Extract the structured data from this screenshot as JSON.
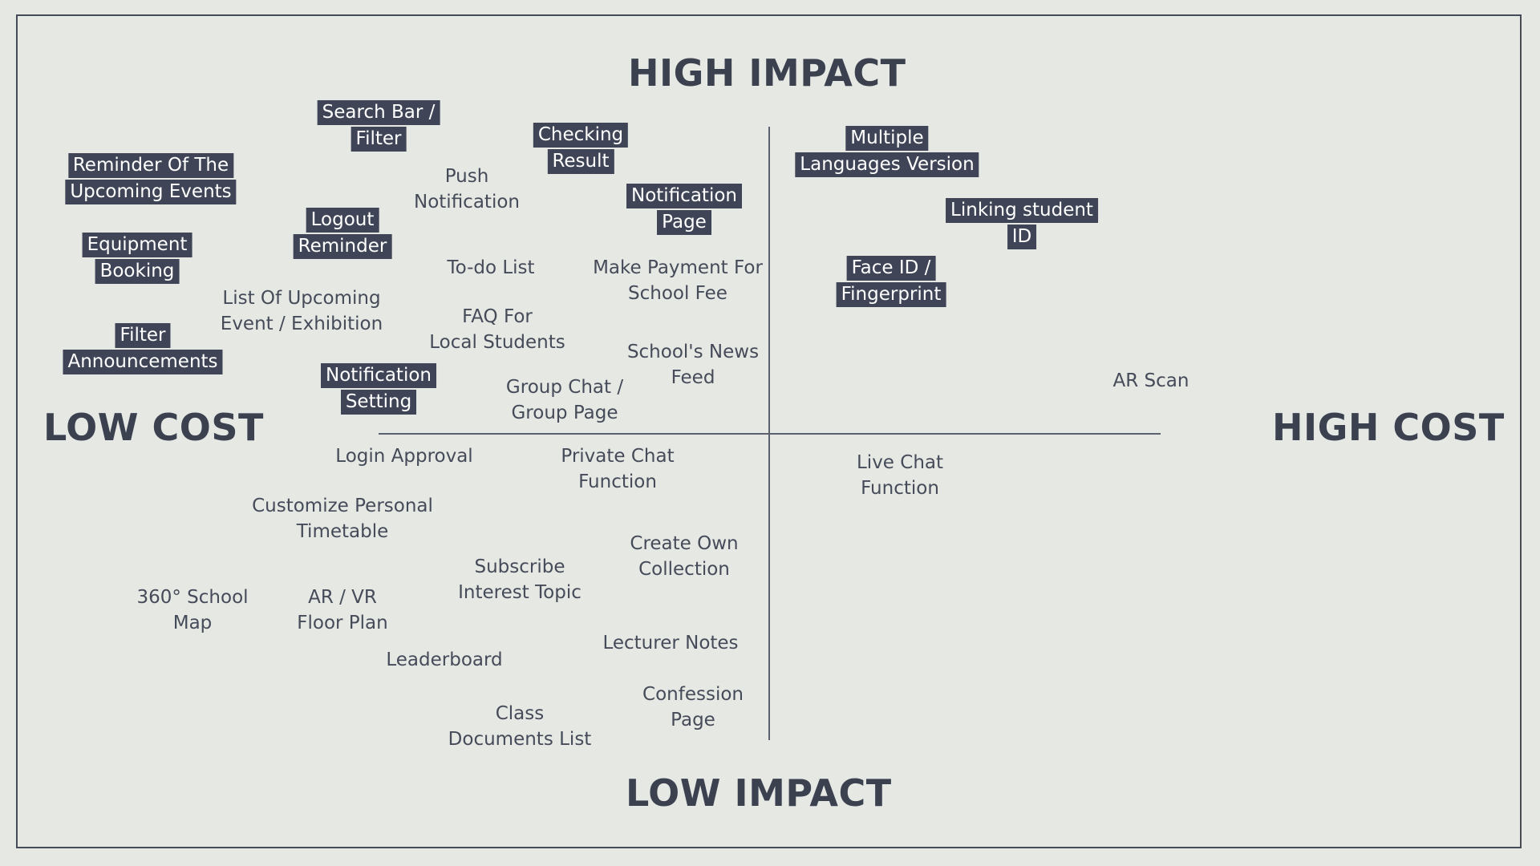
{
  "axes": {
    "top": "HIGH IMPACT",
    "bottom": "LOW IMPACT",
    "left": "LOW COST",
    "right": "HIGH COST"
  },
  "items": [
    {
      "id": "search-bar-filter",
      "lines": [
        "Search Bar /",
        "Filter"
      ],
      "highlighted": true
    },
    {
      "id": "checking-result",
      "lines": [
        "Checking",
        "Result"
      ],
      "highlighted": true
    },
    {
      "id": "reminder-upcoming-events",
      "lines": [
        "Reminder Of The",
        "Upcoming Events"
      ],
      "highlighted": true
    },
    {
      "id": "push-notification",
      "lines": [
        "Push",
        "Notification"
      ],
      "highlighted": false
    },
    {
      "id": "notification-page",
      "lines": [
        "Notification",
        "Page"
      ],
      "highlighted": true
    },
    {
      "id": "logout-reminder",
      "lines": [
        "Logout",
        "Reminder"
      ],
      "highlighted": true
    },
    {
      "id": "equipment-booking",
      "lines": [
        "Equipment",
        "Booking"
      ],
      "highlighted": true
    },
    {
      "id": "todo-list",
      "lines": [
        "To-do List"
      ],
      "highlighted": false
    },
    {
      "id": "make-payment",
      "lines": [
        "Make Payment For",
        "School Fee"
      ],
      "highlighted": false
    },
    {
      "id": "list-upcoming-event",
      "lines": [
        "List Of Upcoming",
        "Event / Exhibition"
      ],
      "highlighted": false
    },
    {
      "id": "faq-local-students",
      "lines": [
        "FAQ For",
        "Local Students"
      ],
      "highlighted": false
    },
    {
      "id": "filter-announcements",
      "lines": [
        "Filter",
        "Announcements"
      ],
      "highlighted": true
    },
    {
      "id": "school-news-feed",
      "lines": [
        "School's News",
        "Feed"
      ],
      "highlighted": false
    },
    {
      "id": "notification-setting",
      "lines": [
        "Notification",
        "Setting"
      ],
      "highlighted": true
    },
    {
      "id": "group-chat",
      "lines": [
        "Group Chat /",
        "Group Page"
      ],
      "highlighted": false
    },
    {
      "id": "multiple-languages",
      "lines": [
        "Multiple",
        "Languages Version"
      ],
      "highlighted": true
    },
    {
      "id": "linking-student-id",
      "lines": [
        "Linking student",
        "ID"
      ],
      "highlighted": true
    },
    {
      "id": "face-id-fingerprint",
      "lines": [
        "Face ID /",
        "Fingerprint"
      ],
      "highlighted": true
    },
    {
      "id": "ar-scan",
      "lines": [
        "AR Scan"
      ],
      "highlighted": false
    },
    {
      "id": "login-approval",
      "lines": [
        "Login Approval"
      ],
      "highlighted": false
    },
    {
      "id": "private-chat",
      "lines": [
        "Private Chat",
        "Function"
      ],
      "highlighted": false
    },
    {
      "id": "live-chat",
      "lines": [
        "Live Chat",
        "Function"
      ],
      "highlighted": false
    },
    {
      "id": "customize-timetable",
      "lines": [
        "Customize Personal",
        "Timetable"
      ],
      "highlighted": false
    },
    {
      "id": "create-own-collection",
      "lines": [
        "Create Own",
        "Collection"
      ],
      "highlighted": false
    },
    {
      "id": "subscribe-interest-topic",
      "lines": [
        "Subscribe",
        "Interest Topic"
      ],
      "highlighted": false
    },
    {
      "id": "school-map-360",
      "lines": [
        "360° School",
        "Map"
      ],
      "highlighted": false
    },
    {
      "id": "ar-vr-floor-plan",
      "lines": [
        "AR / VR",
        "Floor Plan"
      ],
      "highlighted": false
    },
    {
      "id": "lecturer-notes",
      "lines": [
        "Lecturer Notes"
      ],
      "highlighted": false
    },
    {
      "id": "leaderboard",
      "lines": [
        "Leaderboard"
      ],
      "highlighted": false
    },
    {
      "id": "confession-page",
      "lines": [
        "Confession",
        "Page"
      ],
      "highlighted": false
    },
    {
      "id": "class-documents-list",
      "lines": [
        "Class",
        "Documents List"
      ],
      "highlighted": false
    }
  ]
}
